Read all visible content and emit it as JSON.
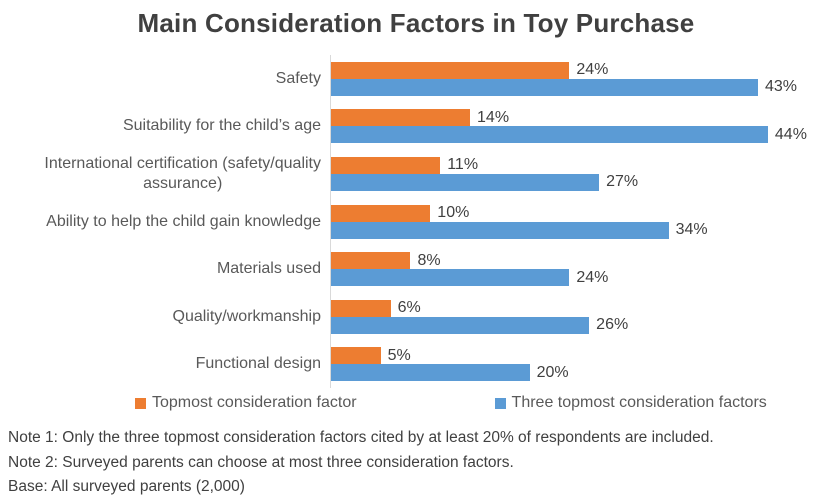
{
  "chart_data": {
    "type": "bar",
    "orientation": "horizontal",
    "title": "Main Consideration Factors in Toy Purchase",
    "categories": [
      "Safety",
      "Suitability for the child’s age",
      "International certification (safety/quality\nassurance)",
      "Ability to help the child gain knowledge",
      "Materials used",
      "Quality/workmanship",
      "Functional design"
    ],
    "series": [
      {
        "name": "Topmost consideration factor",
        "color": "#ED7D31",
        "values": [
          24,
          14,
          11,
          10,
          8,
          6,
          5
        ]
      },
      {
        "name": "Three topmost consideration factors",
        "color": "#5B9BD5",
        "values": [
          43,
          44,
          27,
          34,
          24,
          26,
          20
        ]
      }
    ],
    "value_suffix": "%",
    "xlim": [
      0,
      45
    ],
    "data_labels": "outside-end",
    "legend_position": "bottom",
    "grid": false,
    "axis_color": "#D9D9D9"
  },
  "notes": {
    "note1": "Note 1: Only the three topmost consideration factors cited by at least 20% of respondents are included.",
    "note2": "Note 2: Surveyed parents can choose at most three consideration factors.",
    "base": "Base: All surveyed parents (2,000)"
  }
}
